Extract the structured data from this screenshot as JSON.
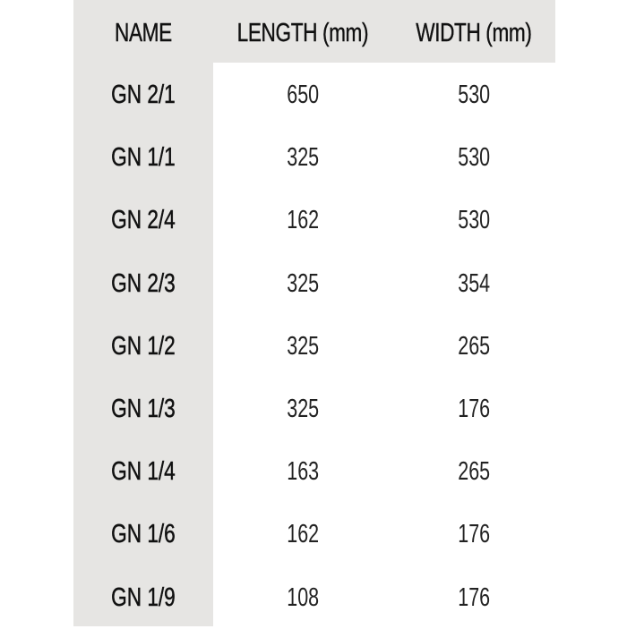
{
  "table": {
    "headers": [
      "NAME",
      "LENGTH (mm)",
      "WIDTH (mm)"
    ],
    "rows": [
      [
        "GN 2/1",
        "650",
        "530"
      ],
      [
        "GN 1/1",
        "325",
        "530"
      ],
      [
        "GN 2/4",
        "162",
        "530"
      ],
      [
        "GN 2/3",
        "325",
        "354"
      ],
      [
        "GN 1/2",
        "325",
        "265"
      ],
      [
        "GN 1/3",
        "325",
        "176"
      ],
      [
        "GN 1/4",
        "163",
        "265"
      ],
      [
        "GN 1/6",
        "162",
        "176"
      ],
      [
        "GN 1/9",
        "108",
        "176"
      ]
    ]
  },
  "colors": {
    "header_background": "#e6e5e3",
    "body_background": "#ffffff",
    "text": "#111111"
  }
}
